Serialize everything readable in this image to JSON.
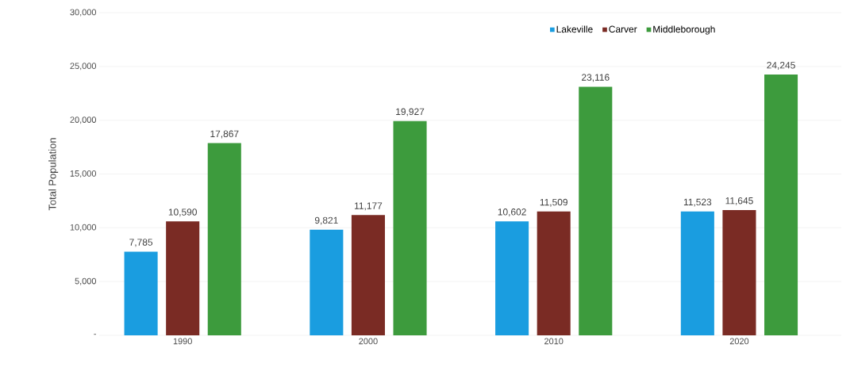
{
  "chart_data": {
    "type": "bar",
    "ylabel": "Total Population",
    "categories": [
      "1990",
      "2000",
      "2010",
      "2020"
    ],
    "series": [
      {
        "name": "Lakeville",
        "color": "#1a9de0",
        "values": [
          7785,
          9821,
          10602,
          11523
        ],
        "value_labels": [
          "7,785",
          "9,821",
          "10,602",
          "11,523"
        ]
      },
      {
        "name": "Carver",
        "color": "#7a2b24",
        "values": [
          10590,
          11177,
          11509,
          11645
        ],
        "value_labels": [
          "10,590",
          "11,177",
          "11,509",
          "11,645"
        ]
      },
      {
        "name": "Middleborough",
        "color": "#3d9b3d",
        "values": [
          17867,
          19927,
          23116,
          24245
        ],
        "value_labels": [
          "17,867",
          "19,927",
          "23,116",
          "24,245"
        ]
      }
    ],
    "ylim": [
      0,
      30000
    ],
    "yticks": [
      {
        "value": 0,
        "label": "-"
      },
      {
        "value": 5000,
        "label": "5,000"
      },
      {
        "value": 10000,
        "label": "10,000"
      },
      {
        "value": 15000,
        "label": "15,000"
      },
      {
        "value": 20000,
        "label": "20,000"
      },
      {
        "value": 25000,
        "label": "25,000"
      },
      {
        "value": 30000,
        "label": "30,000"
      }
    ],
    "grid": "y",
    "legend": "top right"
  }
}
